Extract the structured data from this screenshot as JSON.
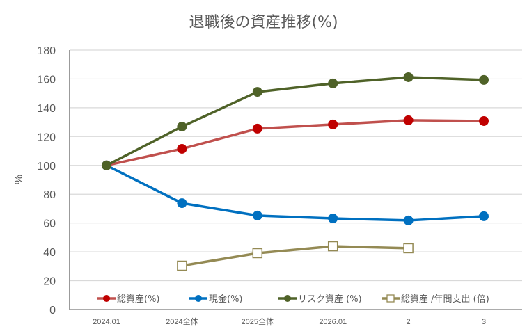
{
  "chart_data": {
    "type": "line",
    "title": "退職後の資産推移(%)",
    "xlabel": "",
    "ylabel": "%",
    "ylim": [
      0,
      180
    ],
    "yticks": [
      0,
      20,
      40,
      60,
      80,
      100,
      120,
      140,
      160,
      180
    ],
    "grid": true,
    "legend_position": "bottom-inside",
    "categories": [
      "2024.01",
      "2024全体",
      "2025全体",
      "2026.01",
      "2",
      "3"
    ],
    "series": [
      {
        "name": "総資産(%)",
        "color": "#C0504D",
        "marker": "circle",
        "marker_color": "#C00000",
        "values": [
          100,
          111.5,
          125.5,
          128.4,
          131.3,
          130.8
        ]
      },
      {
        "name": "現金(%)",
        "color": "#0070C0",
        "marker": "circle",
        "marker_color": "#0070C0",
        "values": [
          100,
          73.8,
          65.2,
          63.2,
          61.8,
          64.7
        ]
      },
      {
        "name": "リスク資産 (%)",
        "color": "#4F6228",
        "marker": "circle",
        "marker_color": "#4F6228",
        "values": [
          100,
          126.9,
          151,
          156.9,
          161.2,
          159.3
        ]
      },
      {
        "name": "総資産 /年間支出 (倍)",
        "color": "#948A54",
        "marker": "square-open",
        "marker_color": "#948A54",
        "values": [
          null,
          30.4,
          39.1,
          43.9,
          42.5,
          null
        ]
      }
    ]
  }
}
